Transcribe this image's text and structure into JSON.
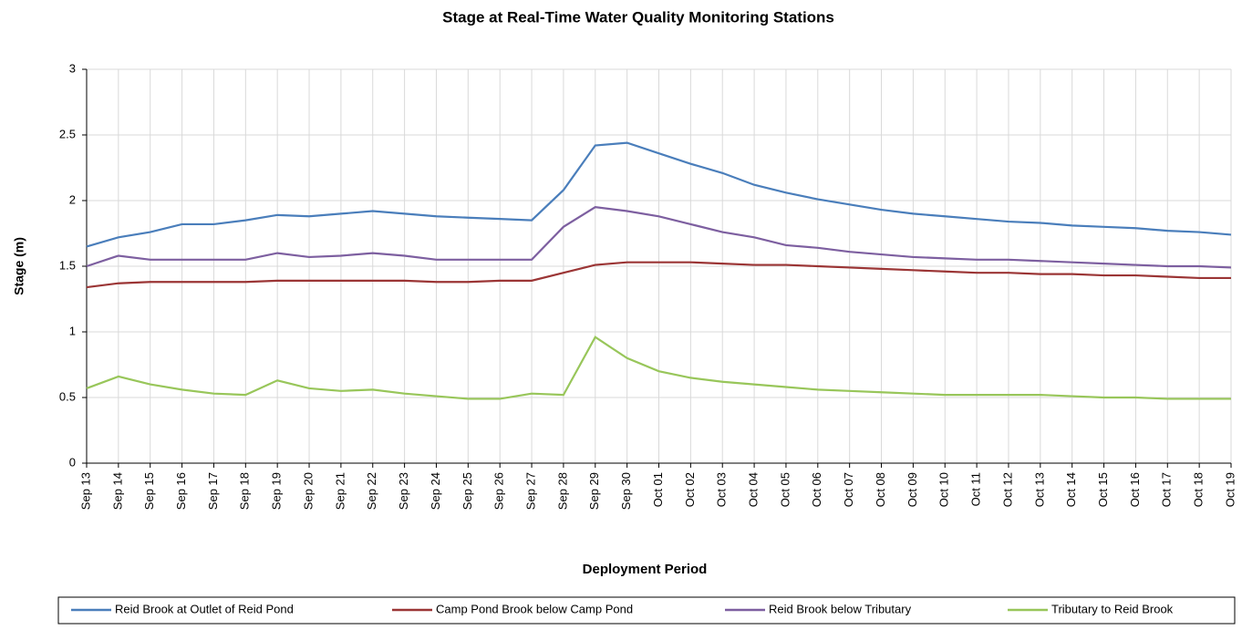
{
  "chart_data": {
    "type": "line",
    "title": "Stage at Real-Time Water Quality Monitoring Stations",
    "x_label": "Deployment Period",
    "y_label": "Stage (m)",
    "categories": [
      "Sep 13",
      "Sep 14",
      "Sep 15",
      "Sep 16",
      "Sep 17",
      "Sep 18",
      "Sep 19",
      "Sep 20",
      "Sep 21",
      "Sep 22",
      "Sep 23",
      "Sep 24",
      "Sep 25",
      "Sep 26",
      "Sep 27",
      "Sep 28",
      "Sep 29",
      "Sep 30",
      "Oct 01",
      "Oct 02",
      "Oct 03",
      "Oct 04",
      "Oct 05",
      "Oct 06",
      "Oct 07",
      "Oct 08",
      "Oct 09",
      "Oct 10",
      "Oct 11",
      "Oct 12",
      "Oct 13",
      "Oct 14",
      "Oct 15",
      "Oct 16",
      "Oct 17",
      "Oct 18",
      "Oct 19"
    ],
    "series": [
      {
        "name": "Reid Brook at Outlet of Reid Pond",
        "color": "#4a7ebb",
        "values": [
          1.65,
          1.72,
          1.76,
          1.82,
          1.82,
          1.85,
          1.89,
          1.88,
          1.9,
          1.92,
          1.9,
          1.88,
          1.87,
          1.86,
          1.85,
          2.08,
          2.42,
          2.44,
          2.36,
          2.28,
          2.21,
          2.12,
          2.06,
          2.01,
          1.97,
          1.93,
          1.9,
          1.88,
          1.86,
          1.84,
          1.83,
          1.81,
          1.8,
          1.79,
          1.77,
          1.76,
          1.74
        ]
      },
      {
        "name": "Camp Pond Brook below Camp Pond",
        "color": "#9b3535",
        "values": [
          1.34,
          1.37,
          1.38,
          1.38,
          1.38,
          1.38,
          1.39,
          1.39,
          1.39,
          1.39,
          1.39,
          1.38,
          1.38,
          1.39,
          1.39,
          1.45,
          1.51,
          1.53,
          1.53,
          1.53,
          1.52,
          1.51,
          1.51,
          1.5,
          1.49,
          1.48,
          1.47,
          1.46,
          1.45,
          1.45,
          1.44,
          1.44,
          1.43,
          1.43,
          1.42,
          1.41,
          1.41
        ]
      },
      {
        "name": "Reid Brook below Tributary",
        "color": "#7d5fa0",
        "values": [
          1.5,
          1.58,
          1.55,
          1.55,
          1.55,
          1.55,
          1.6,
          1.57,
          1.58,
          1.6,
          1.58,
          1.55,
          1.55,
          1.55,
          1.55,
          1.8,
          1.95,
          1.92,
          1.88,
          1.82,
          1.76,
          1.72,
          1.66,
          1.64,
          1.61,
          1.59,
          1.57,
          1.56,
          1.55,
          1.55,
          1.54,
          1.53,
          1.52,
          1.51,
          1.5,
          1.5,
          1.49
        ]
      },
      {
        "name": "Tributary to Reid Brook",
        "color": "#98c65a",
        "values": [
          0.57,
          0.66,
          0.6,
          0.56,
          0.53,
          0.52,
          0.63,
          0.57,
          0.55,
          0.56,
          0.53,
          0.51,
          0.49,
          0.49,
          0.53,
          0.52,
          0.96,
          0.8,
          0.7,
          0.65,
          0.62,
          0.6,
          0.58,
          0.56,
          0.55,
          0.54,
          0.53,
          0.52,
          0.52,
          0.52,
          0.52,
          0.51,
          0.5,
          0.5,
          0.49,
          0.49,
          0.49
        ]
      }
    ],
    "ylim": [
      0,
      3
    ],
    "yticks": [
      0,
      0.5,
      1,
      1.5,
      2,
      2.5,
      3
    ],
    "grid": true
  }
}
